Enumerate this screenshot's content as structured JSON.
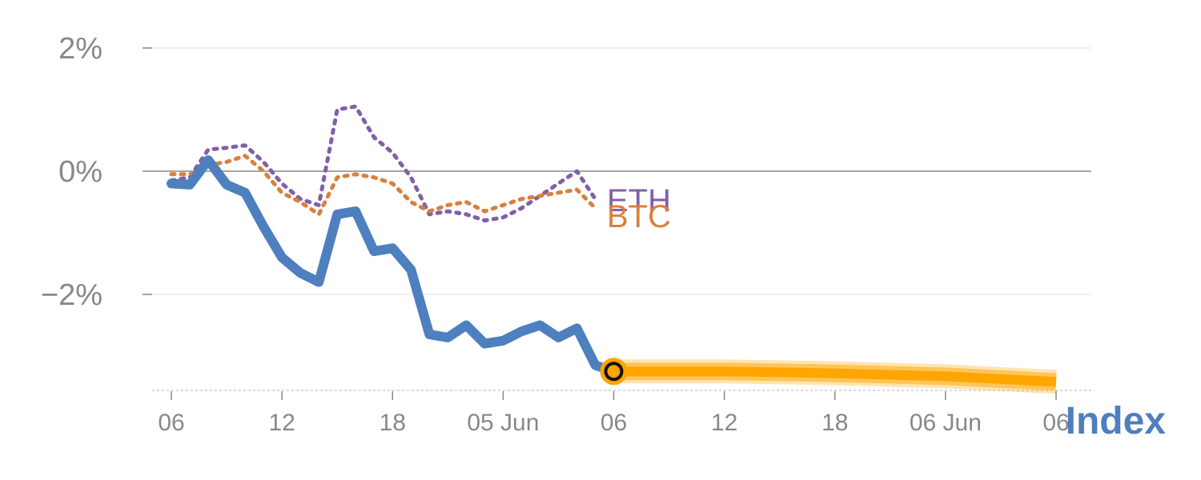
{
  "chart_data": {
    "type": "line",
    "title": "",
    "xlabel": "",
    "ylabel": "",
    "ylim": [
      -3.5,
      2.6
    ],
    "y_ticks": [
      {
        "value": 2,
        "label": "2%"
      },
      {
        "value": 0,
        "label": "0%"
      },
      {
        "value": -2,
        "label": "−2%"
      }
    ],
    "x_range": [
      0,
      48
    ],
    "x_ticks": [
      {
        "x": 0,
        "label": "06"
      },
      {
        "x": 6,
        "label": "12"
      },
      {
        "x": 12,
        "label": "18"
      },
      {
        "x": 18,
        "label": "05 Jun"
      },
      {
        "x": 24,
        "label": "06"
      },
      {
        "x": 30,
        "label": "12"
      },
      {
        "x": 36,
        "label": "18"
      },
      {
        "x": 42,
        "label": "06 Jun"
      },
      {
        "x": 48,
        "label": "06"
      }
    ],
    "series": [
      {
        "name": "Index",
        "label": "Index",
        "color": "#4e7fbf",
        "style": "solid",
        "points": [
          [
            0,
            -0.2
          ],
          [
            1,
            -0.22
          ],
          [
            2,
            0.18
          ],
          [
            3,
            -0.22
          ],
          [
            4,
            -0.35
          ],
          [
            5,
            -0.9
          ],
          [
            6,
            -1.4
          ],
          [
            7,
            -1.65
          ],
          [
            8,
            -1.8
          ],
          [
            9,
            -0.7
          ],
          [
            10,
            -0.65
          ],
          [
            11,
            -1.3
          ],
          [
            12,
            -1.25
          ],
          [
            13,
            -1.6
          ],
          [
            14,
            -2.65
          ],
          [
            15,
            -2.7
          ],
          [
            16,
            -2.5
          ],
          [
            17,
            -2.8
          ],
          [
            18,
            -2.75
          ],
          [
            19,
            -2.6
          ],
          [
            20,
            -2.5
          ],
          [
            21,
            -2.7
          ],
          [
            22,
            -2.55
          ],
          [
            23,
            -3.15
          ],
          [
            24,
            -3.25
          ]
        ]
      },
      {
        "name": "Index forecast",
        "label": "",
        "color": "#ffa500",
        "style": "forecast",
        "points": [
          [
            24,
            -3.25
          ],
          [
            30,
            -3.25
          ],
          [
            36,
            -3.28
          ],
          [
            42,
            -3.33
          ],
          [
            48,
            -3.42
          ]
        ]
      },
      {
        "name": "ETH",
        "label": "ETH",
        "color": "#8060a8",
        "style": "dotted",
        "points": [
          [
            0,
            -0.15
          ],
          [
            1,
            -0.1
          ],
          [
            2,
            0.35
          ],
          [
            3,
            0.38
          ],
          [
            4,
            0.42
          ],
          [
            5,
            0.15
          ],
          [
            6,
            -0.2
          ],
          [
            7,
            -0.45
          ],
          [
            8,
            -0.55
          ],
          [
            9,
            1.0
          ],
          [
            10,
            1.05
          ],
          [
            11,
            0.55
          ],
          [
            12,
            0.3
          ],
          [
            13,
            -0.1
          ],
          [
            14,
            -0.7
          ],
          [
            15,
            -0.65
          ],
          [
            16,
            -0.7
          ],
          [
            17,
            -0.8
          ],
          [
            18,
            -0.75
          ],
          [
            19,
            -0.6
          ],
          [
            20,
            -0.4
          ],
          [
            21,
            -0.2
          ],
          [
            22,
            0.0
          ],
          [
            23,
            -0.45
          ]
        ]
      },
      {
        "name": "BTC",
        "label": "BTC",
        "color": "#d9803c",
        "style": "dotted",
        "points": [
          [
            0,
            -0.05
          ],
          [
            1,
            -0.05
          ],
          [
            2,
            0.1
          ],
          [
            3,
            0.15
          ],
          [
            4,
            0.25
          ],
          [
            5,
            0.0
          ],
          [
            6,
            -0.35
          ],
          [
            7,
            -0.5
          ],
          [
            8,
            -0.7
          ],
          [
            9,
            -0.1
          ],
          [
            10,
            -0.05
          ],
          [
            11,
            -0.1
          ],
          [
            12,
            -0.2
          ],
          [
            13,
            -0.5
          ],
          [
            14,
            -0.65
          ],
          [
            15,
            -0.55
          ],
          [
            16,
            -0.5
          ],
          [
            17,
            -0.65
          ],
          [
            18,
            -0.55
          ],
          [
            19,
            -0.45
          ],
          [
            20,
            -0.4
          ],
          [
            21,
            -0.35
          ],
          [
            22,
            -0.3
          ],
          [
            23,
            -0.6
          ]
        ]
      }
    ],
    "marker": {
      "x": 24,
      "y": -3.25,
      "color": "#ffa500"
    },
    "grid": true,
    "zero_line": true,
    "legend": "none"
  }
}
